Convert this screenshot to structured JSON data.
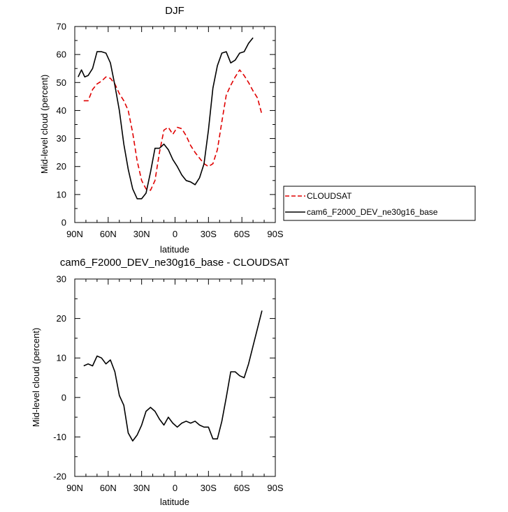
{
  "chart_data": [
    {
      "type": "line",
      "title": "DJF",
      "xlabel": "latitude",
      "ylabel": "Mid-level cloud (percent)",
      "xlim": [
        90,
        -90
      ],
      "ylim": [
        0,
        70
      ],
      "xticks": [
        90,
        60,
        30,
        0,
        -30,
        -60,
        -90
      ],
      "xticklabels": [
        "90N",
        "60N",
        "30N",
        "0",
        "30S",
        "60S",
        "90S"
      ],
      "yticks": [
        0,
        10,
        20,
        30,
        40,
        50,
        60,
        70
      ],
      "grid": false,
      "legend_position": "right",
      "series": [
        {
          "name": "CLOUDSAT",
          "color": "#e00000",
          "dash": "dashed",
          "x": [
            82,
            78,
            74,
            70,
            66,
            62,
            58,
            54,
            50,
            46,
            42,
            38,
            34,
            30,
            26,
            22,
            18,
            14,
            10,
            6,
            2,
            -2,
            -6,
            -10,
            -14,
            -18,
            -22,
            -26,
            -30,
            -34,
            -38,
            -42,
            -46,
            -50,
            -54,
            -58,
            -62,
            -66,
            -70,
            -74,
            -78,
            -82
          ],
          "values": [
            43.5,
            43.5,
            47.5,
            49.5,
            50.5,
            52,
            51.5,
            49.5,
            46,
            43.5,
            40,
            32,
            22,
            15,
            12,
            11.5,
            15,
            25,
            33,
            34,
            31.5,
            34,
            33.5,
            31,
            27.5,
            25,
            23,
            21,
            20,
            21,
            26,
            36,
            45.5,
            49,
            52,
            54.5,
            52.5,
            50,
            47,
            44.5,
            38.5,
            null
          ]
        },
        {
          "name": "cam6_F2000_DEV_ne30g16_base",
          "color": "#000000",
          "dash": "solid",
          "x": [
            87,
            84,
            81,
            78,
            74,
            70,
            66,
            62,
            58,
            54,
            50,
            46,
            42,
            38,
            34,
            30,
            26,
            22,
            18,
            14,
            10,
            6,
            2,
            -2,
            -6,
            -10,
            -14,
            -18,
            -22,
            -26,
            -30,
            -34,
            -38,
            -42,
            -46,
            -50,
            -54,
            -58,
            -62,
            -66,
            -70,
            -74,
            -78,
            -82,
            -86
          ],
          "values": [
            52,
            54.5,
            52,
            52.5,
            55,
            61,
            61,
            60.5,
            57,
            49,
            40,
            28,
            19,
            12,
            8.5,
            8.5,
            10.5,
            18,
            26.5,
            26.5,
            28,
            26,
            22.5,
            20,
            17,
            15,
            14.5,
            13.5,
            16,
            21,
            33,
            48,
            56,
            60.5,
            61,
            57,
            58,
            60.5,
            61,
            64,
            66,
            null,
            null,
            null,
            null
          ]
        }
      ]
    },
    {
      "type": "line",
      "title": "cam6_F2000_DEV_ne30g16_base - CLOUDSAT",
      "xlabel": "latitude",
      "ylabel": "Mid-level cloud (percent)",
      "xlim": [
        90,
        -90
      ],
      "ylim": [
        -20,
        30
      ],
      "xticks": [
        90,
        60,
        30,
        0,
        -30,
        -60,
        -90
      ],
      "xticklabels": [
        "90N",
        "60N",
        "30N",
        "0",
        "30S",
        "60S",
        "90S"
      ],
      "yticks": [
        -20,
        -10,
        0,
        10,
        20,
        30
      ],
      "grid": false,
      "series": [
        {
          "color": "#000000",
          "dash": "solid",
          "x": [
            82,
            78,
            74,
            70,
            66,
            62,
            58,
            54,
            50,
            46,
            42,
            38,
            34,
            30,
            26,
            22,
            18,
            14,
            10,
            6,
            2,
            -2,
            -6,
            -10,
            -14,
            -18,
            -22,
            -26,
            -30,
            -34,
            -38,
            -42,
            -46,
            -50,
            -54,
            -58,
            -62,
            -66,
            -70,
            -74,
            -78,
            -82
          ],
          "values": [
            8,
            8.5,
            8,
            10.5,
            10,
            8.5,
            9.5,
            6.5,
            0.5,
            -2,
            -9,
            -11,
            -9.5,
            -7,
            -3.5,
            -2.5,
            -3.5,
            -5.5,
            -7,
            -5,
            -6.5,
            -7.5,
            -6.5,
            -6,
            -6.5,
            -6,
            -7,
            -7.5,
            -7.5,
            -10.5,
            -10.5,
            -6,
            0,
            6.5,
            6.5,
            5.5,
            5,
            8.5,
            13,
            17.5,
            22,
            null
          ]
        }
      ]
    }
  ]
}
